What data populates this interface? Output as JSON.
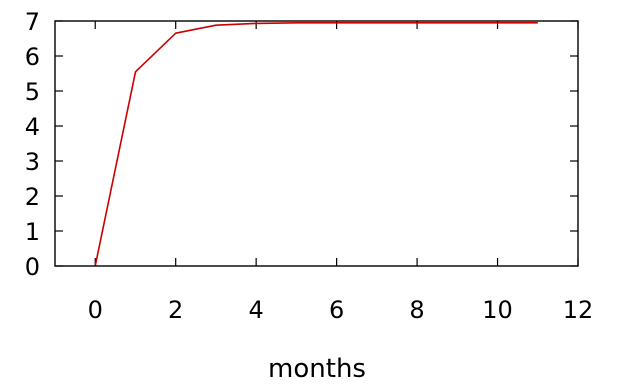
{
  "chart_data": {
    "type": "line",
    "xlabel": "months",
    "ylabel": "",
    "title": "",
    "xlim": [
      -1,
      12
    ],
    "ylim": [
      0,
      7
    ],
    "x_ticks": [
      0,
      2,
      4,
      6,
      8,
      10,
      12
    ],
    "y_ticks": [
      0,
      1,
      2,
      3,
      4,
      5,
      6,
      7
    ],
    "x_tick_labels": [
      "0",
      "2",
      "4",
      "6",
      "8",
      "10",
      "12"
    ],
    "y_tick_labels": [
      "0",
      "1",
      "2",
      "3",
      "4",
      "5",
      "6",
      "7"
    ],
    "grid": false,
    "legend": "none",
    "series": [
      {
        "color": "#cc0000",
        "x": [
          0,
          1,
          2,
          3,
          4,
          5,
          6,
          7,
          8,
          9,
          10,
          11
        ],
        "y": [
          0,
          5.55,
          6.65,
          6.88,
          6.93,
          6.95,
          6.95,
          6.95,
          6.95,
          6.95,
          6.95,
          6.95
        ]
      }
    ]
  }
}
